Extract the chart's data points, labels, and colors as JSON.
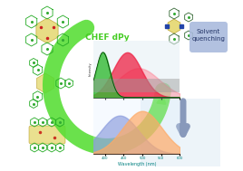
{
  "background_color": "#ffffff",
  "fig_width": 2.68,
  "fig_height": 1.89,
  "dpi": 100,
  "chef_text": "CHEF dPy",
  "chef_color": "#44cc22",
  "chef_fontsize": 6.5,
  "solvent_text": "Solvent\nquenching",
  "solvent_color": "#aabbdd",
  "solvent_fontsize": 5.0,
  "arrow_color": "#55dd33",
  "xmin": 370,
  "xmax": 600,
  "xlabel": "Wavelength (nm)",
  "xlabel_fontsize": 3.5,
  "upper_green_peak": 395,
  "upper_green_sigma": 18,
  "upper_green_amp": 1.0,
  "upper_green_color": "#33bb33",
  "upper_red_peak": 460,
  "upper_red_sigma": 38,
  "upper_red_amp": 1.0,
  "upper_red_color": "#ee2244",
  "upper_pink_peak": 490,
  "upper_pink_sigma": 55,
  "upper_pink_amp": 0.65,
  "upper_pink_color": "#ff8899",
  "lower_blue_peak": 440,
  "lower_blue_sigma": 50,
  "lower_blue_amp": 0.85,
  "lower_blue_color": "#8899dd",
  "lower_orange_peak": 500,
  "lower_orange_sigma": 52,
  "lower_orange_amp": 0.95,
  "lower_orange_color": "#ffaa66",
  "gray_bar_color": "#999999",
  "gray_bar_alpha": 0.45,
  "blue_arrow_color": "#8899bb",
  "light_blue_bg": "#cce0f0"
}
